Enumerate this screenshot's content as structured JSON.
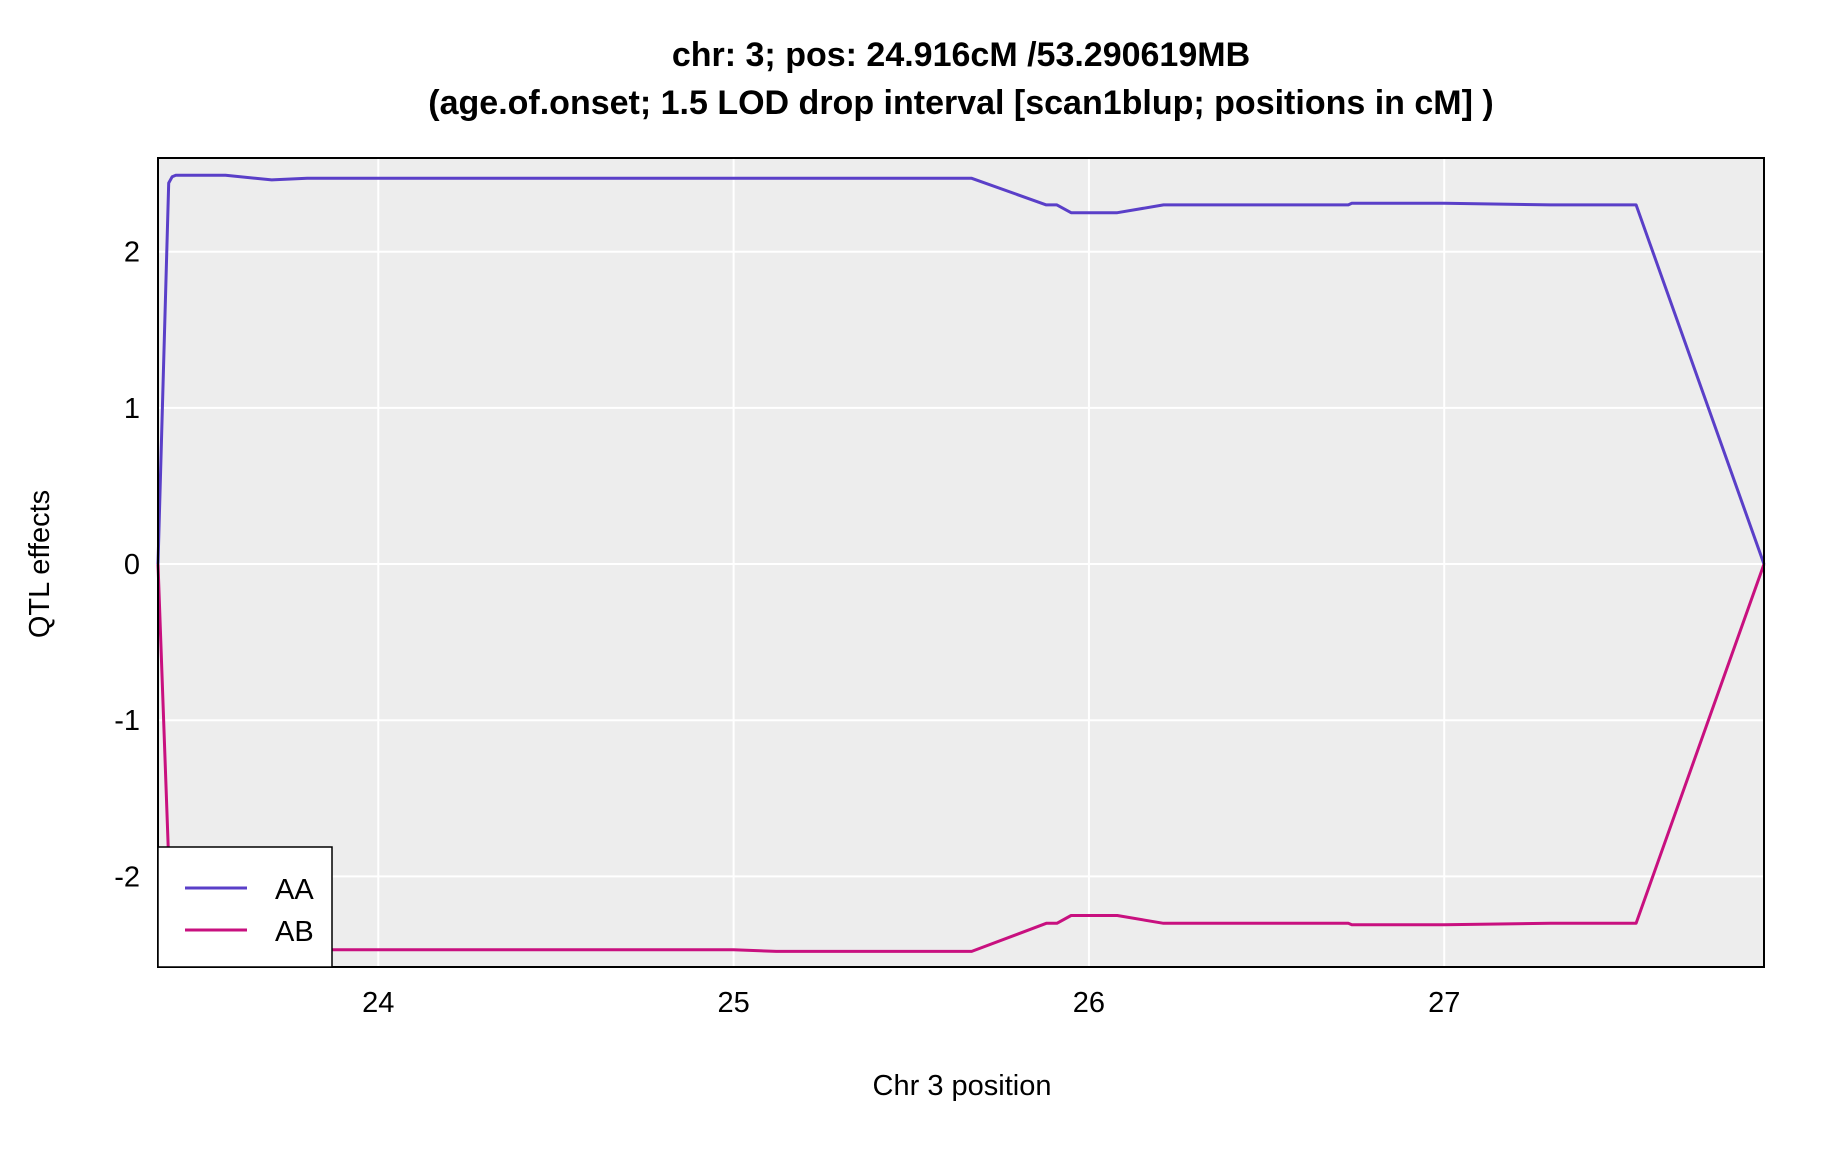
{
  "chart_data": {
    "type": "line",
    "title": "chr: 3; pos: 24.916cM /53.290619MB",
    "subtitle": "(age.of.onset; 1.5 LOD drop interval [scan1blup; positions in cM] )",
    "xlabel": "Chr 3 position",
    "ylabel": "QTL effects",
    "xlim": [
      23.38,
      27.9
    ],
    "ylim": [
      -2.58,
      2.6
    ],
    "xticks": [
      24,
      25,
      26,
      27
    ],
    "yticks": [
      -2,
      -1,
      0,
      1,
      2
    ],
    "grid": true,
    "legend": "bottom-left",
    "series": [
      {
        "name": "AA",
        "color": "#5A3FC8",
        "x": [
          23.38,
          23.41,
          23.42,
          23.43,
          23.5,
          23.57,
          23.7,
          23.8,
          24.0,
          24.5,
          24.8,
          25.0,
          25.12,
          25.3,
          25.5,
          25.67,
          25.88,
          25.91,
          25.95,
          26.08,
          26.21,
          26.5,
          26.73,
          26.74,
          27.0,
          27.3,
          27.54,
          27.9
        ],
        "y": [
          0.0,
          2.44,
          2.48,
          2.49,
          2.49,
          2.49,
          2.46,
          2.47,
          2.47,
          2.47,
          2.47,
          2.47,
          2.47,
          2.47,
          2.47,
          2.47,
          2.3,
          2.3,
          2.25,
          2.25,
          2.3,
          2.3,
          2.3,
          2.31,
          2.31,
          2.3,
          2.3,
          0.0
        ]
      },
      {
        "name": "AB",
        "color": "#C8107F",
        "x": [
          23.38,
          23.41,
          23.42,
          23.43,
          23.5,
          23.57,
          23.7,
          23.8,
          24.0,
          24.5,
          24.8,
          25.0,
          25.12,
          25.3,
          25.5,
          25.67,
          25.88,
          25.91,
          25.95,
          26.08,
          26.21,
          26.5,
          26.73,
          26.74,
          27.0,
          27.3,
          27.54,
          27.9
        ],
        "y": [
          0.0,
          -1.9,
          -2.46,
          -2.47,
          -2.47,
          -2.47,
          -2.47,
          -2.47,
          -2.47,
          -2.47,
          -2.47,
          -2.47,
          -2.48,
          -2.48,
          -2.48,
          -2.48,
          -2.3,
          -2.3,
          -2.25,
          -2.25,
          -2.3,
          -2.3,
          -2.3,
          -2.31,
          -2.31,
          -2.3,
          -2.3,
          0.0
        ]
      }
    ],
    "colors": {
      "panel_bg": "#EDEDED",
      "grid": "#FFFFFF"
    }
  }
}
